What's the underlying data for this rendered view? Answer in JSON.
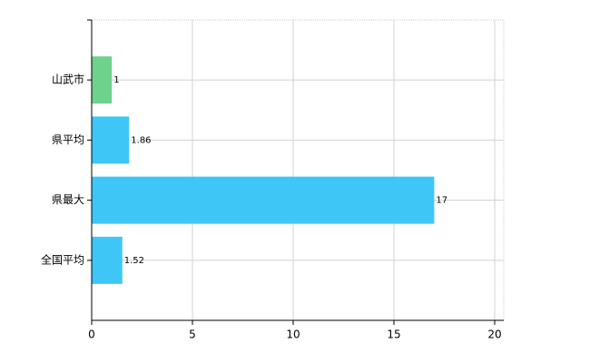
{
  "chart_data": {
    "type": "barh",
    "categories": [
      "山武市",
      "県平均",
      "県最大",
      "全国平均"
    ],
    "values": [
      1,
      1.86,
      17,
      1.52
    ],
    "colors": [
      "#6ed28c",
      "#3ec6f6",
      "#3ec6f6",
      "#3ec6f6"
    ],
    "xlim": [
      0,
      20
    ],
    "xticks": [
      0,
      5,
      10,
      15,
      20
    ],
    "grid": true
  }
}
